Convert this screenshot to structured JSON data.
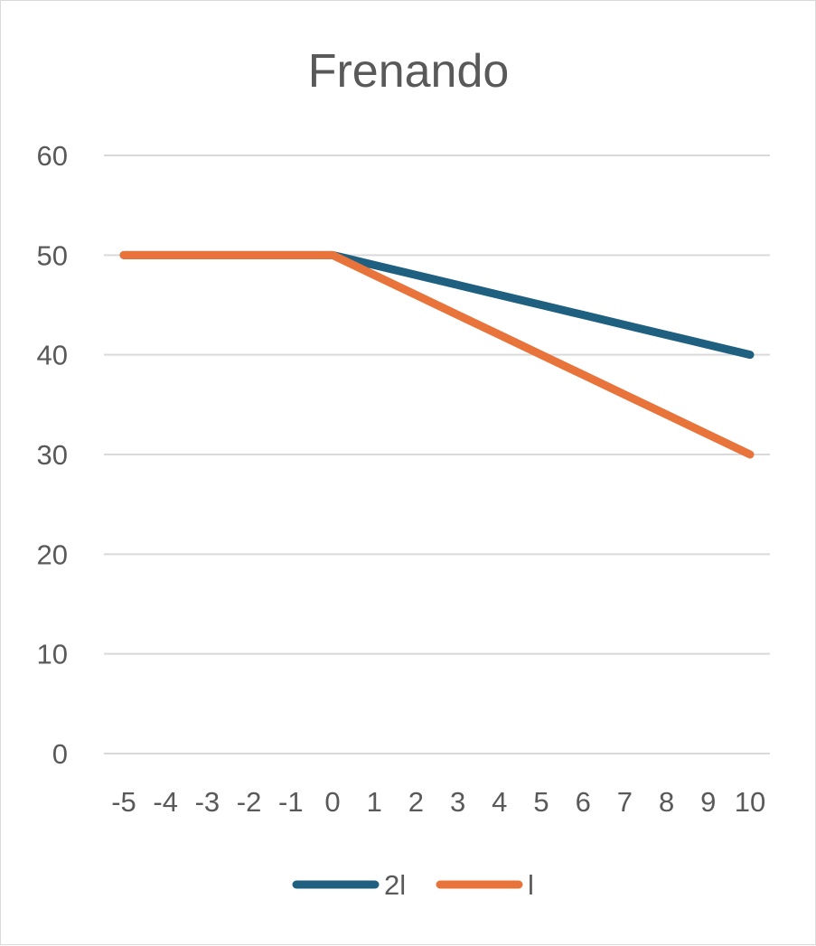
{
  "chart_data": {
    "type": "line",
    "title": "Frenando",
    "x": [
      "-5",
      "-4",
      "-3",
      "-2",
      "-1",
      "0",
      "1",
      "2",
      "3",
      "4",
      "5",
      "6",
      "7",
      "8",
      "9",
      "10"
    ],
    "series": [
      {
        "name": "2l",
        "color": "#1f5f7f",
        "values": [
          50,
          50,
          50,
          50,
          50,
          50,
          49,
          48,
          47,
          46,
          45,
          44,
          43,
          42,
          41,
          40
        ]
      },
      {
        "name": "l",
        "color": "#e8743b",
        "values": [
          50,
          50,
          50,
          50,
          50,
          50,
          48,
          46,
          44,
          42,
          40,
          38,
          36,
          34,
          32,
          30
        ]
      }
    ],
    "ylim": [
      0,
      60
    ],
    "yticks": [
      0,
      10,
      20,
      30,
      40,
      50,
      60
    ],
    "grid": true,
    "legend": "bottom",
    "gridColor": "#d9d9d9",
    "textColor": "#595959"
  }
}
